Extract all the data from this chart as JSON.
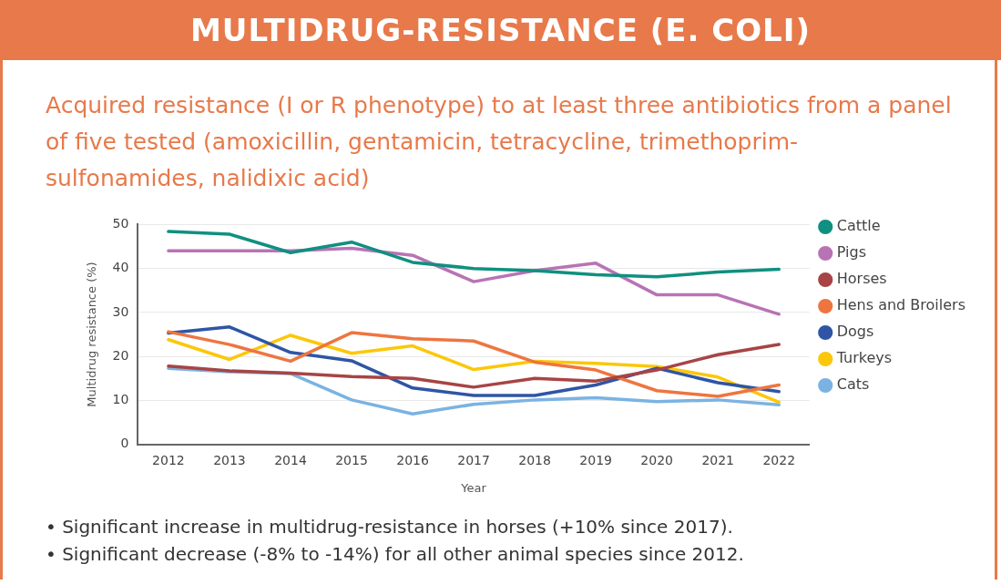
{
  "chart_data": {
    "type": "line",
    "title": "MULTIDRUG-RESISTANCE (E. COLI)",
    "subtitle": "Acquired resistance (I or R phenotype) to at least three antibiotics from a panel of five tested (amoxicillin, gentamicin, tetracycline, trimethoprim-sulfonamides, nalidixic acid)",
    "xlabel": "Year",
    "ylabel": "Multidrug resistance (%)",
    "categories": [
      "2012",
      "2013",
      "2014",
      "2015",
      "2016",
      "2017",
      "2018",
      "2019",
      "2020",
      "2021",
      "2022"
    ],
    "series": [
      {
        "name": "Cattle",
        "color": "#0f9080",
        "values": [
          48.4,
          47.8,
          43.6,
          46,
          41.4,
          40,
          39.5,
          38.6,
          38.1,
          39.2,
          39.8
        ]
      },
      {
        "name": "Pigs",
        "color": "#b873b5",
        "values": [
          44,
          44,
          44,
          44.6,
          43,
          37,
          39.5,
          41.2,
          34,
          34,
          29.6
        ]
      },
      {
        "name": "Horses",
        "color": "#a84444",
        "values": [
          17.8,
          16.7,
          16.2,
          15.4,
          15,
          13,
          15,
          14.4,
          16.9,
          20.4,
          22.7
        ]
      },
      {
        "name": "Hens and Broilers",
        "color": "#ee7540",
        "values": [
          25.6,
          22.7,
          18.9,
          25.4,
          24,
          23.5,
          18.7,
          16.9,
          12.2,
          10.9,
          13.5
        ]
      },
      {
        "name": "Dogs",
        "color": "#2f55a4",
        "values": [
          25.3,
          26.7,
          20.9,
          19,
          12.8,
          11.1,
          11.1,
          13.5,
          17.3,
          14,
          12
        ]
      },
      {
        "name": "Turkeys",
        "color": "#fcc70a",
        "values": [
          23.8,
          19.3,
          24.8,
          20.7,
          22.4,
          17,
          18.9,
          18.4,
          17.7,
          15.3,
          9.6
        ]
      },
      {
        "name": "Cats",
        "color": "#7ab3e3",
        "values": [
          17.3,
          16.5,
          16.1,
          10.1,
          6.9,
          9.1,
          10.1,
          10.6,
          9.7,
          10.1,
          9
        ]
      }
    ],
    "ylim": [
      0,
      50
    ],
    "yticks": [
      0,
      10,
      20,
      30,
      40,
      50
    ],
    "grid": "y",
    "legend": "right",
    "marker": "none",
    "line_style": "solid",
    "annotations": [
      "• Significant increase in multidrug-resistance in horses (+10% since 2017).",
      "• Significant decrease (-8% to -14%) for all other animal species since 2012."
    ]
  }
}
